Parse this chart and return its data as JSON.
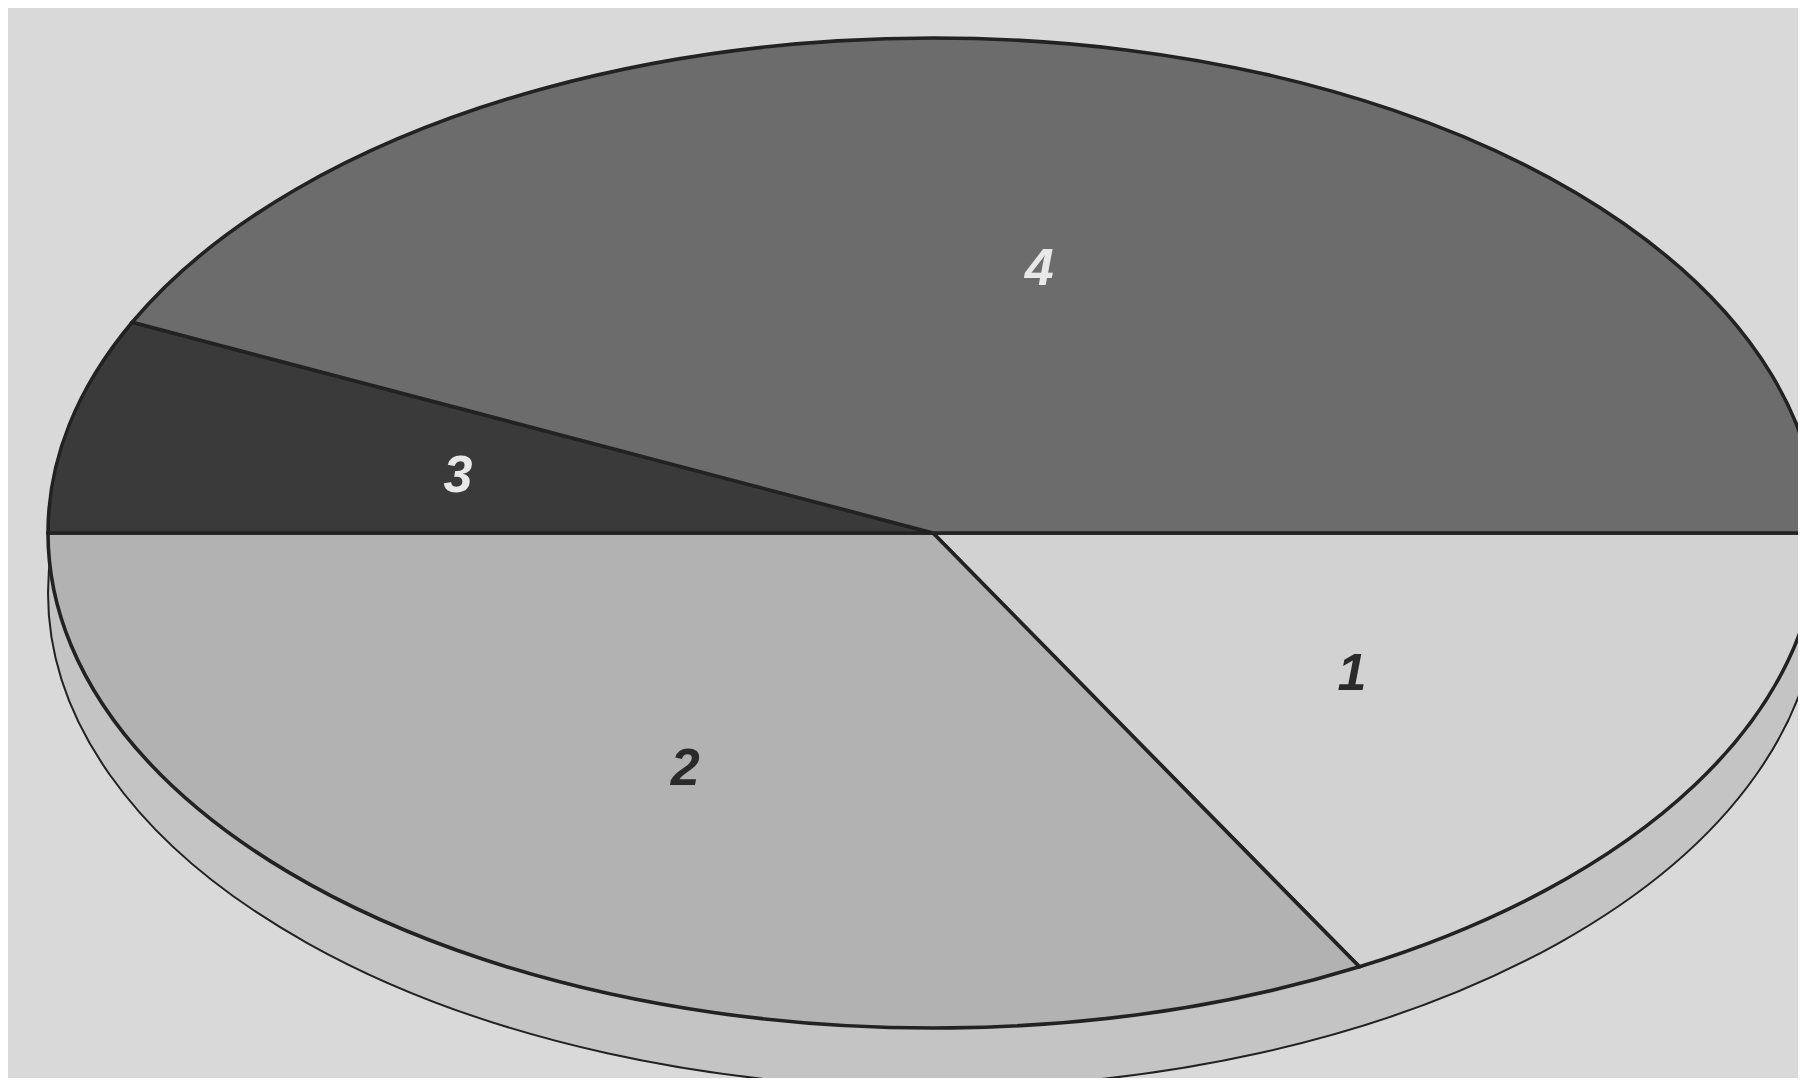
{
  "chart_data": {
    "type": "pie",
    "categories": [
      "1",
      "2",
      "3",
      "4"
    ],
    "values": [
      17,
      33,
      7,
      43
    ],
    "colors": [
      "#d2d2d2",
      "#b2b2b2",
      "#3a3a3a",
      "#6c6c6c"
    ]
  }
}
